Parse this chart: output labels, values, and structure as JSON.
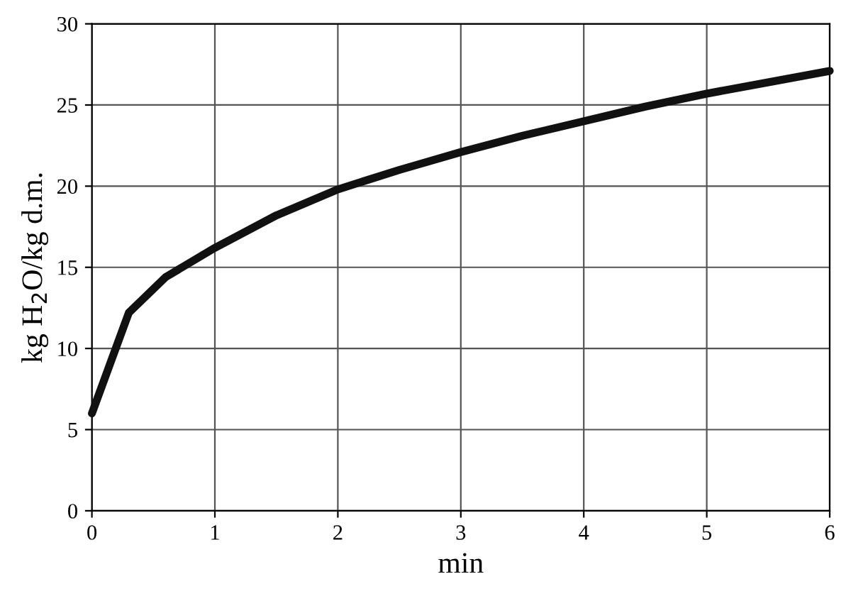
{
  "chart_data": {
    "type": "line",
    "xlabel": "min",
    "ylabel": "kg H$_{2}$O/kg d.m.",
    "x": [
      0,
      0.3,
      0.6,
      1,
      1.5,
      2,
      2.5,
      3,
      3.5,
      4,
      4.5,
      5,
      5.5,
      6
    ],
    "series": [
      {
        "color": "#111111",
        "values": [
          6,
          12.2,
          14.4,
          16.2,
          18.2,
          19.8,
          21.0,
          22.1,
          23.1,
          24.0,
          24.9,
          25.7,
          26.4,
          27.1
        ]
      }
    ],
    "xlim": [
      0,
      6
    ],
    "xticks": [
      0,
      1,
      2,
      3,
      4,
      5,
      6
    ],
    "ylim": [
      0,
      30
    ],
    "yticks": [
      0,
      5,
      10,
      15,
      20,
      25,
      30
    ],
    "grid": true,
    "line_style": "solid",
    "marker": "none"
  }
}
